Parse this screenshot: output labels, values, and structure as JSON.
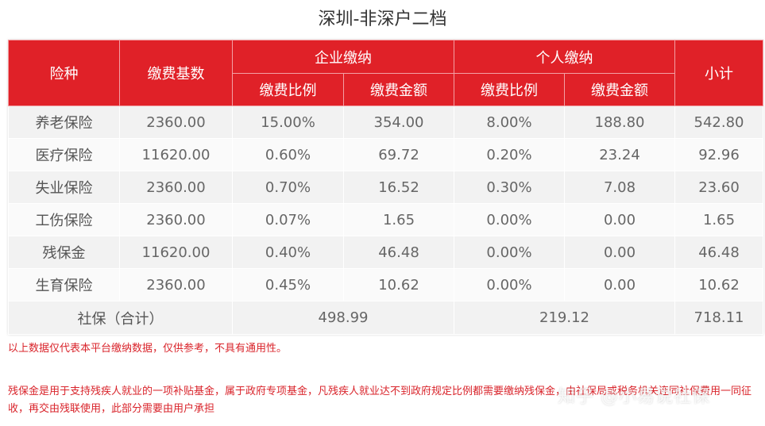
{
  "title": "深圳-非深户二档",
  "headers": {
    "type": "险种",
    "base": "缴费基数",
    "company": "企业缴纳",
    "personal": "个人缴纳",
    "subtotal": "小计",
    "rate": "缴费比例",
    "amount": "缴费金额"
  },
  "rows": [
    {
      "name": "养老保险",
      "base": "2360.00",
      "c_rate": "15.00%",
      "c_amt": "354.00",
      "p_rate": "8.00%",
      "p_amt": "188.80",
      "subtotal": "542.80"
    },
    {
      "name": "医疗保险",
      "base": "11620.00",
      "c_rate": "0.60%",
      "c_amt": "69.72",
      "p_rate": "0.20%",
      "p_amt": "23.24",
      "subtotal": "92.96"
    },
    {
      "name": "失业保险",
      "base": "2360.00",
      "c_rate": "0.70%",
      "c_amt": "16.52",
      "p_rate": "0.30%",
      "p_amt": "7.08",
      "subtotal": "23.60"
    },
    {
      "name": "工伤保险",
      "base": "2360.00",
      "c_rate": "0.07%",
      "c_amt": "1.65",
      "p_rate": "0.00%",
      "p_amt": "0.00",
      "subtotal": "1.65"
    },
    {
      "name": "残保金",
      "base": "11620.00",
      "c_rate": "0.40%",
      "c_amt": "46.48",
      "p_rate": "0.00%",
      "p_amt": "0.00",
      "subtotal": "46.48"
    },
    {
      "name": "生育保险",
      "base": "2360.00",
      "c_rate": "0.45%",
      "c_amt": "10.62",
      "p_rate": "0.00%",
      "p_amt": "0.00",
      "subtotal": "10.62"
    }
  ],
  "total": {
    "label": "社保（合计）",
    "company": "498.99",
    "personal": "219.12",
    "subtotal": "718.11"
  },
  "notes": {
    "disclaimer": "以上数据仅代表本平台缴纳数据，仅供参考，不具有通用性。",
    "disability": "残保金是用于支持残疾人就业的一项补贴基金，属于政府专项基金，凡残疾人就业达不到政府规定比例都需要缴纳残保金，由社保局或税务机关连同社保费用一同征收，再交由残联使用，此部分需要由用户承担"
  },
  "watermark": "知乎 @小易说社保",
  "colors": {
    "header_red": "#e02128",
    "note_red": "#d9242b"
  }
}
